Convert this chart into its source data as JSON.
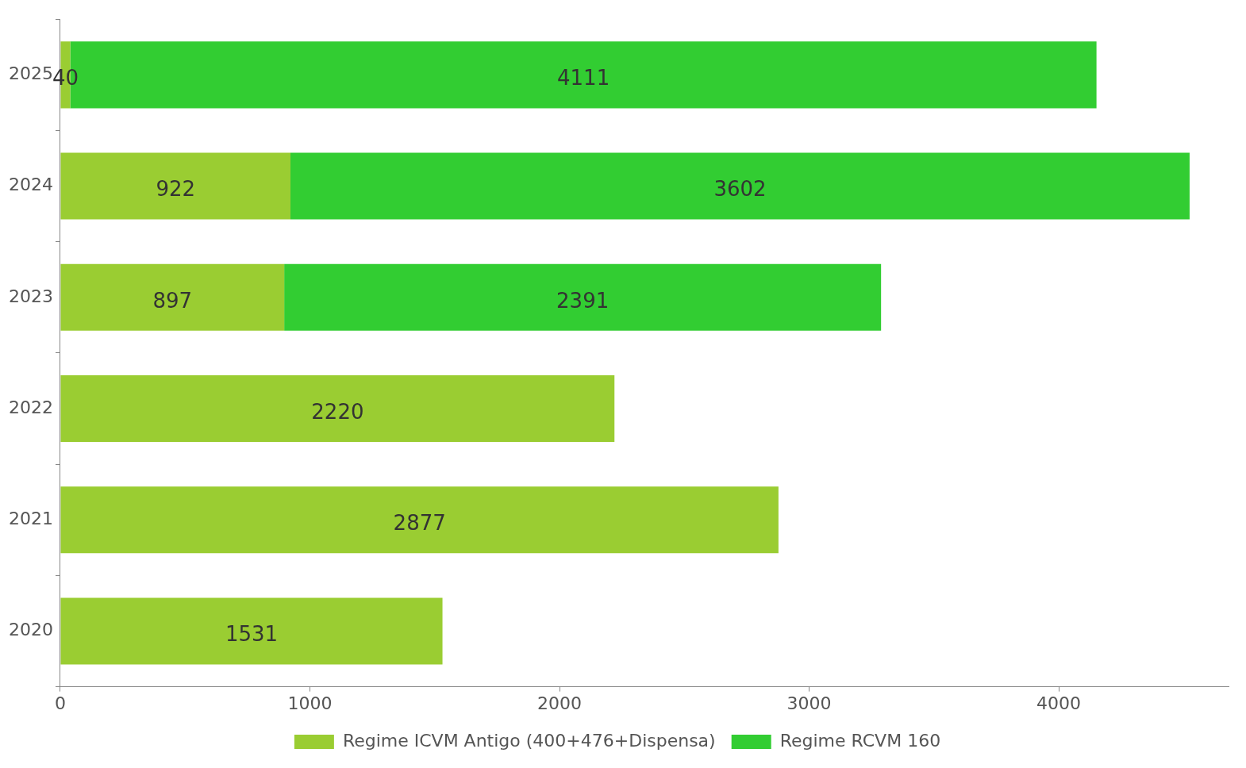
{
  "chart_data": {
    "type": "bar",
    "orientation": "horizontal",
    "stacked": true,
    "categories": [
      "2025",
      "2024",
      "2023",
      "2022",
      "2021",
      "2020"
    ],
    "series": [
      {
        "name": "Regime ICVM Antigo (400+476+Dispensa)",
        "color": "#9acd32",
        "values": [
          40,
          922,
          897,
          2220,
          2877,
          1531
        ]
      },
      {
        "name": "Regime RCVM 160",
        "color": "#32cd32",
        "values": [
          4111,
          3602,
          2391,
          null,
          null,
          null
        ]
      }
    ],
    "xlim": [
      0,
      4680
    ],
    "xticks": [
      0,
      1000,
      2000,
      3000,
      4000
    ],
    "data_labels": true,
    "legend": "bottom"
  }
}
